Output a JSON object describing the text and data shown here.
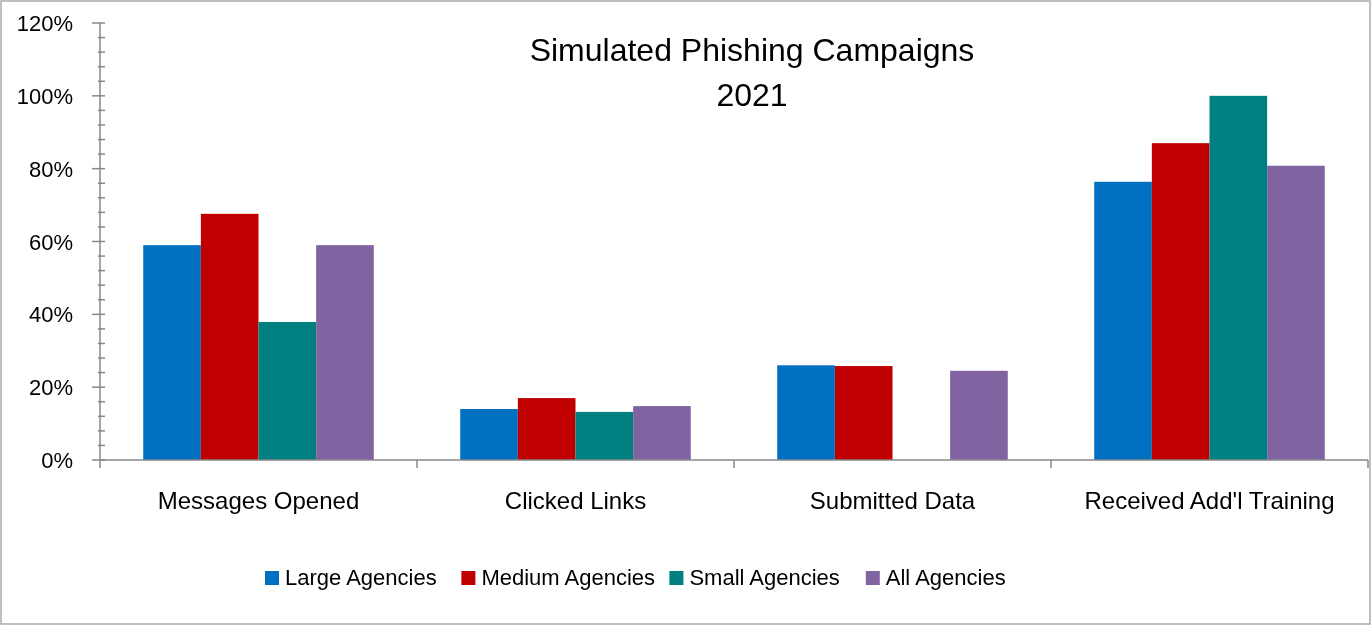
{
  "chart_data": {
    "type": "bar",
    "title": "Simulated Phishing Campaigns\n2021",
    "categories": [
      "Messages Opened",
      "Clicked Links",
      "Submitted Data",
      "Received Add'l Training"
    ],
    "series": [
      {
        "name": "Large Agencies",
        "color": "#0070c0",
        "values": [
          59,
          14,
          26,
          76.4
        ]
      },
      {
        "name": "Medium Agencies",
        "color": "#c00000",
        "values": [
          67.6,
          17,
          25.8,
          87
        ]
      },
      {
        "name": "Small Agencies",
        "color": "#008080",
        "values": [
          37.9,
          13.2,
          null,
          100
        ]
      },
      {
        "name": "All Agencies",
        "color": "#8064a2",
        "values": [
          59,
          14.8,
          24.5,
          80.8
        ]
      }
    ],
    "ylim": [
      0,
      120
    ],
    "yticks": [
      {
        "value": 0,
        "label": "0%"
      },
      {
        "value": 4,
        "label": null
      },
      {
        "value": 8,
        "label": null
      },
      {
        "value": 12,
        "label": null
      },
      {
        "value": 16,
        "label": null
      },
      {
        "value": 20,
        "label": "20%"
      },
      {
        "value": 24,
        "label": null
      },
      {
        "value": 28,
        "label": null
      },
      {
        "value": 32,
        "label": null
      },
      {
        "value": 36,
        "label": null
      },
      {
        "value": 40,
        "label": "40%"
      },
      {
        "value": 44,
        "label": null
      },
      {
        "value": 48,
        "label": null
      },
      {
        "value": 52,
        "label": null
      },
      {
        "value": 56,
        "label": null
      },
      {
        "value": 60,
        "label": "60%"
      },
      {
        "value": 64,
        "label": null
      },
      {
        "value": 68,
        "label": null
      },
      {
        "value": 72,
        "label": null
      },
      {
        "value": 76,
        "label": null
      },
      {
        "value": 80,
        "label": "80%"
      },
      {
        "value": 84,
        "label": null
      },
      {
        "value": 88,
        "label": null
      },
      {
        "value": 92,
        "label": null
      },
      {
        "value": 96,
        "label": null
      },
      {
        "value": 100,
        "label": "100%"
      },
      {
        "value": 104,
        "label": null
      },
      {
        "value": 108,
        "label": null
      },
      {
        "value": 112,
        "label": null
      },
      {
        "value": 116,
        "label": null
      },
      {
        "value": 120,
        "label": "120%"
      }
    ],
    "legend": "bottom",
    "grid": false
  }
}
